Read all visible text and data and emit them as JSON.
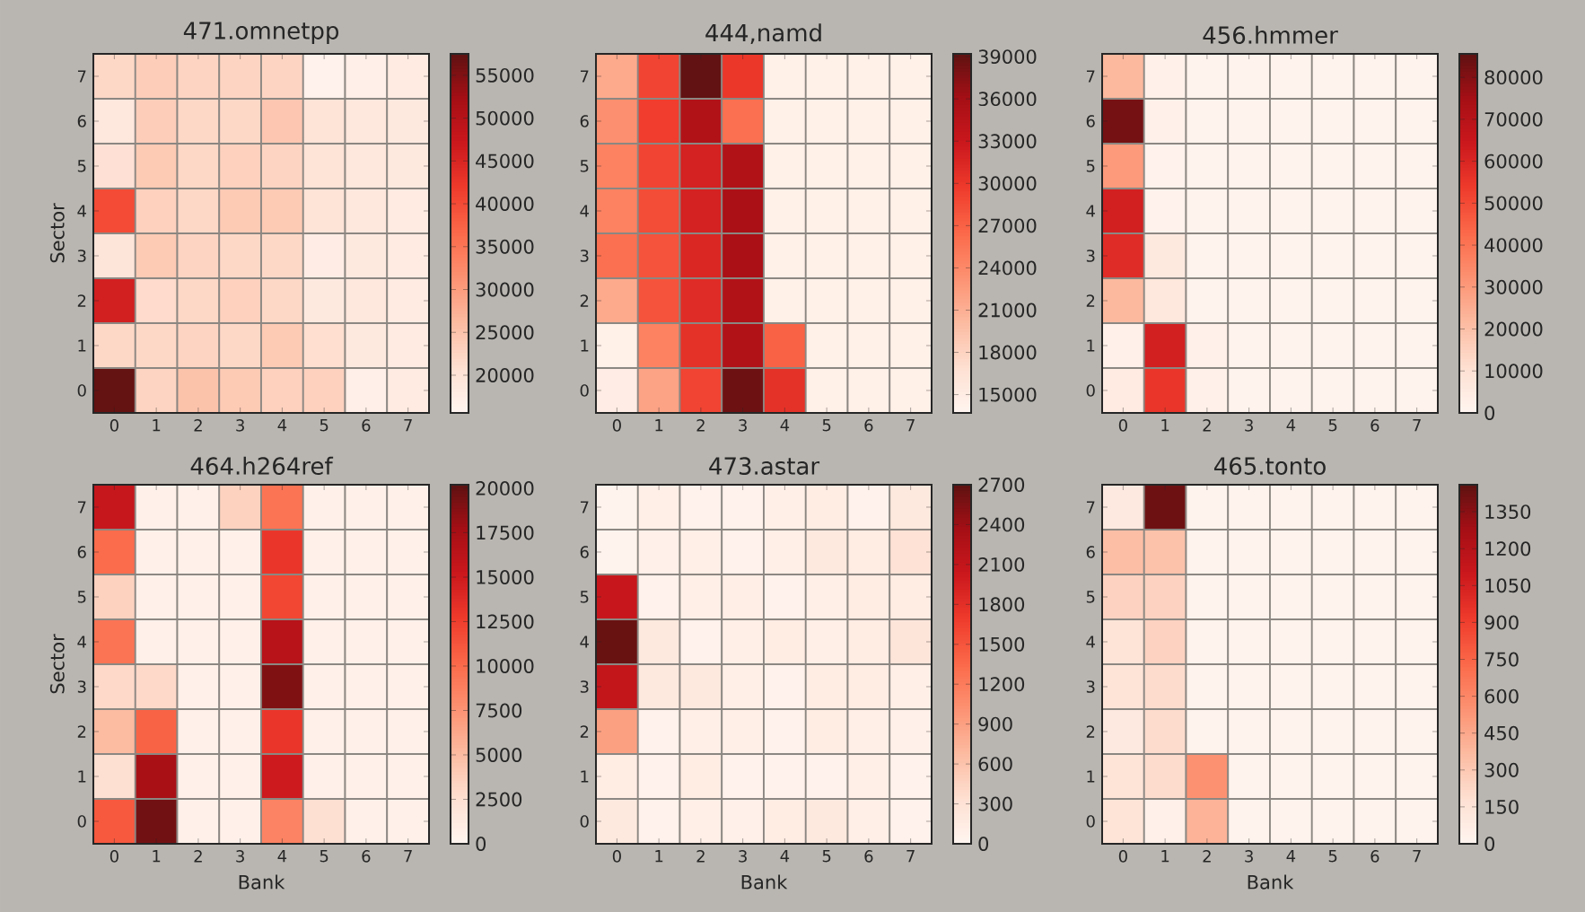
{
  "chart_data": [
    {
      "type": "heatmap",
      "title": "471.omnetpp",
      "ylabel": "Sector",
      "categories": [
        "0",
        "1",
        "2",
        "3",
        "4",
        "5",
        "6",
        "7"
      ],
      "y_categories": [
        "7",
        "6",
        "5",
        "4",
        "3",
        "2",
        "1",
        "0"
      ],
      "cells": [
        [
          22000,
          23500,
          22500,
          22500,
          22500,
          16500,
          17000,
          18000
        ],
        [
          19000,
          23500,
          22000,
          22000,
          24500,
          20000,
          19000,
          18500
        ],
        [
          20500,
          24000,
          22000,
          23000,
          22500,
          20000,
          19000,
          18500
        ],
        [
          40000,
          23000,
          22000,
          24000,
          24000,
          20000,
          19000,
          18000
        ],
        [
          19500,
          24000,
          22500,
          22000,
          22000,
          17500,
          18500,
          18000
        ],
        [
          46000,
          21500,
          22000,
          23000,
          22000,
          18500,
          19000,
          18000
        ],
        [
          22000,
          22000,
          22500,
          22000,
          24000,
          21000,
          18500,
          18000
        ],
        [
          57000,
          22500,
          25000,
          24000,
          23000,
          23000,
          17000,
          18000
        ]
      ],
      "clim": [
        15600,
        57500
      ],
      "cticks": [
        20000,
        25000,
        30000,
        35000,
        40000,
        45000,
        50000,
        55000
      ]
    },
    {
      "type": "heatmap",
      "title": "444,namd",
      "categories": [
        "0",
        "1",
        "2",
        "3",
        "4",
        "5",
        "6",
        "7"
      ],
      "y_categories": [
        "7",
        "6",
        "5",
        "4",
        "3",
        "2",
        "1",
        "0"
      ],
      "cells": [
        [
          21500,
          29000,
          39000,
          30000,
          14500,
          14500,
          14500,
          14500
        ],
        [
          23500,
          29500,
          35000,
          26000,
          14500,
          14500,
          14500,
          14500
        ],
        [
          24500,
          29000,
          32000,
          35000,
          14500,
          14500,
          14500,
          14500
        ],
        [
          24500,
          28500,
          32000,
          35500,
          14500,
          14500,
          14500,
          14500
        ],
        [
          26000,
          28000,
          31500,
          35500,
          14500,
          14500,
          14500,
          14500
        ],
        [
          21500,
          28000,
          31000,
          35000,
          14500,
          14500,
          14500,
          14500
        ],
        [
          14500,
          24500,
          30500,
          35000,
          27000,
          14500,
          14500,
          14500
        ],
        [
          15000,
          22000,
          29000,
          38500,
          30500,
          14500,
          14500,
          14500
        ]
      ],
      "clim": [
        13700,
        39200
      ],
      "cticks": [
        15000,
        18000,
        21000,
        24000,
        27000,
        30000,
        33000,
        36000,
        39000
      ]
    },
    {
      "type": "heatmap",
      "title": "456.hmmer",
      "categories": [
        "0",
        "1",
        "2",
        "3",
        "4",
        "5",
        "6",
        "7"
      ],
      "y_categories": [
        "7",
        "6",
        "5",
        "4",
        "3",
        "2",
        "1",
        "0"
      ],
      "cells": [
        [
          22000,
          2000,
          1000,
          1000,
          1000,
          1000,
          1000,
          1000
        ],
        [
          82000,
          2000,
          1000,
          1000,
          1000,
          1000,
          1000,
          1000
        ],
        [
          30000,
          1500,
          1000,
          1000,
          1000,
          1000,
          1000,
          1000
        ],
        [
          62000,
          1500,
          1000,
          1000,
          1000,
          1000,
          1000,
          1000
        ],
        [
          58000,
          6000,
          1000,
          1000,
          1000,
          1000,
          1000,
          1000
        ],
        [
          22000,
          7000,
          1000,
          1000,
          1000,
          1000,
          1000,
          1000
        ],
        [
          2000,
          62000,
          2500,
          1000,
          1000,
          1000,
          1000,
          1000
        ],
        [
          5000,
          55000,
          2000,
          1000,
          1000,
          1000,
          1000,
          1000
        ]
      ],
      "clim": [
        0,
        85600
      ],
      "cticks": [
        0,
        10000,
        20000,
        30000,
        40000,
        50000,
        60000,
        70000,
        80000
      ]
    },
    {
      "type": "heatmap",
      "title": "464.h264ref",
      "xlabel": "Bank",
      "ylabel": "Sector",
      "categories": [
        "0",
        "1",
        "2",
        "3",
        "4",
        "5",
        "6",
        "7"
      ],
      "y_categories": [
        "7",
        "6",
        "5",
        "4",
        "3",
        "2",
        "1",
        "0"
      ],
      "cells": [
        [
          15500,
          500,
          500,
          3500,
          9500,
          500,
          500,
          500
        ],
        [
          10000,
          500,
          500,
          500,
          13000,
          500,
          500,
          500
        ],
        [
          3500,
          500,
          500,
          500,
          12000,
          500,
          500,
          500
        ],
        [
          9500,
          500,
          500,
          500,
          16500,
          500,
          500,
          500
        ],
        [
          3000,
          3000,
          500,
          500,
          19000,
          500,
          500,
          500
        ],
        [
          5000,
          10500,
          500,
          500,
          13000,
          500,
          500,
          500
        ],
        [
          2500,
          17500,
          500,
          500,
          15000,
          500,
          500,
          500
        ],
        [
          11000,
          19500,
          500,
          500,
          8500,
          2500,
          500,
          500
        ]
      ],
      "clim": [
        0,
        20200
      ],
      "cticks": [
        0,
        2500,
        5000,
        7500,
        10000,
        12500,
        15000,
        17500,
        20000
      ]
    },
    {
      "type": "heatmap",
      "title": "473.astar",
      "xlabel": "Bank",
      "categories": [
        "0",
        "1",
        "2",
        "3",
        "4",
        "5",
        "6",
        "7"
      ],
      "y_categories": [
        "7",
        "6",
        "5",
        "4",
        "3",
        "2",
        "1",
        "0"
      ],
      "cells": [
        [
          30,
          100,
          60,
          60,
          100,
          150,
          50,
          200
        ],
        [
          30,
          80,
          100,
          60,
          100,
          200,
          150,
          300
        ],
        [
          2050,
          60,
          100,
          120,
          60,
          100,
          150,
          150
        ],
        [
          2650,
          200,
          60,
          100,
          150,
          100,
          150,
          250
        ],
        [
          2100,
          200,
          200,
          100,
          60,
          150,
          150,
          100
        ],
        [
          900,
          60,
          100,
          100,
          60,
          150,
          100,
          80
        ],
        [
          150,
          60,
          150,
          60,
          60,
          60,
          100,
          60
        ],
        [
          200,
          60,
          100,
          80,
          150,
          200,
          100,
          60
        ]
      ],
      "clim": [
        0,
        2700
      ],
      "cticks": [
        0,
        300,
        600,
        900,
        1200,
        1500,
        1800,
        2100,
        2400,
        2700
      ]
    },
    {
      "type": "heatmap",
      "title": "465.tonto",
      "xlabel": "Bank",
      "categories": [
        "0",
        "1",
        "2",
        "3",
        "4",
        "5",
        "6",
        "7"
      ],
      "y_categories": [
        "7",
        "6",
        "5",
        "4",
        "3",
        "2",
        "1",
        "0"
      ],
      "cells": [
        [
          100,
          1420,
          20,
          20,
          20,
          20,
          20,
          20
        ],
        [
          350,
          330,
          20,
          20,
          20,
          20,
          20,
          20
        ],
        [
          250,
          250,
          20,
          20,
          20,
          20,
          20,
          20
        ],
        [
          150,
          250,
          20,
          20,
          20,
          20,
          20,
          20
        ],
        [
          150,
          200,
          20,
          20,
          20,
          20,
          20,
          20
        ],
        [
          100,
          200,
          20,
          20,
          20,
          20,
          20,
          20
        ],
        [
          150,
          200,
          550,
          20,
          20,
          20,
          20,
          20
        ],
        [
          150,
          40,
          400,
          20,
          20,
          20,
          20,
          20
        ]
      ],
      "clim": [
        0,
        1460
      ],
      "cticks": [
        0,
        150,
        300,
        450,
        600,
        750,
        900,
        1050,
        1200,
        1350
      ]
    }
  ]
}
